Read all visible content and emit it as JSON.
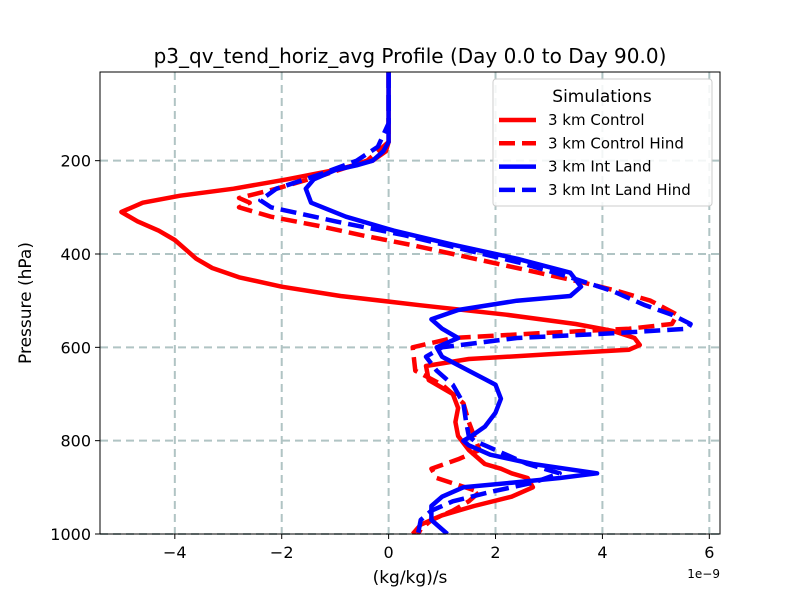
{
  "chart_data": {
    "type": "line",
    "title": "p3_qv_tend_horiz_avg Profile (Day 0.0 to Day 90.0)",
    "xlabel": "(kg/kg)/s",
    "ylabel": "Pressure (hPa)",
    "x_offset_label": "1e−9",
    "xlim": [
      -5.4,
      6.2
    ],
    "ylim": [
      1000,
      10
    ],
    "y_inverted": true,
    "grid": true,
    "x_ticks": [
      -4,
      -2,
      0,
      2,
      4,
      6
    ],
    "x_tick_labels": [
      "−4",
      "−2",
      "0",
      "2",
      "4",
      "6"
    ],
    "y_ticks": [
      200,
      400,
      600,
      800,
      1000
    ],
    "y_tick_labels": [
      "200",
      "400",
      "600",
      "800",
      "1000"
    ],
    "legend": {
      "title": "Simulations",
      "position": "upper right"
    },
    "series": [
      {
        "name": "3 km Control",
        "color": "#ff0000",
        "dash": "solid",
        "x": [
          0,
          0.0,
          0.0,
          -0.05,
          -0.3,
          -1.0,
          -1.9,
          -2.9,
          -3.9,
          -4.6,
          -5.0,
          -4.7,
          -4.3,
          -4.0,
          -3.8,
          -3.6,
          -3.3,
          -2.8,
          -2.0,
          -0.9,
          0.6,
          2.2,
          3.5,
          4.2,
          4.6,
          4.7,
          4.5,
          3.0,
          1.5,
          0.7,
          0.75,
          1.2,
          1.3,
          1.25,
          1.3,
          1.5,
          1.8,
          2.1,
          2.3,
          2.6,
          2.7,
          2.3,
          1.6,
          1.0,
          0.6,
          0.45
        ],
        "y": [
          10,
          120,
          160,
          180,
          200,
          220,
          240,
          260,
          275,
          290,
          310,
          330,
          350,
          370,
          390,
          410,
          430,
          450,
          470,
          490,
          510,
          530,
          550,
          565,
          580,
          595,
          605,
          615,
          625,
          640,
          670,
          700,
          730,
          760,
          790,
          820,
          850,
          860,
          870,
          880,
          900,
          920,
          940,
          960,
          980,
          1000
        ]
      },
      {
        "name": "3 km Control Hind",
        "color": "#ff0000",
        "dash": "dashed",
        "x": [
          0,
          0.0,
          0.0,
          -0.4,
          -1.2,
          -2.1,
          -2.8,
          -2.6,
          -2.8,
          -2.2,
          -1.3,
          -0.5,
          0.4,
          1.2,
          2.0,
          2.8,
          3.6,
          4.3,
          4.9,
          5.4,
          5.3,
          4.5,
          2.8,
          1.2,
          0.45,
          0.5,
          1.0,
          1.4,
          1.5,
          1.6,
          1.7,
          1.3,
          0.8,
          0.9,
          1.7,
          1.5,
          1.2,
          0.8,
          0.6,
          0.55
        ],
        "y": [
          10,
          120,
          160,
          200,
          230,
          260,
          280,
          290,
          300,
          320,
          340,
          360,
          380,
          400,
          420,
          440,
          460,
          480,
          500,
          530,
          550,
          560,
          570,
          580,
          600,
          650,
          680,
          720,
          760,
          790,
          820,
          840,
          860,
          880,
          910,
          930,
          950,
          970,
          990,
          1000
        ]
      },
      {
        "name": "3 km Int Land",
        "color": "#0000ff",
        "dash": "solid",
        "x": [
          0,
          0.0,
          0.0,
          -0.1,
          -0.3,
          -0.6,
          -1.0,
          -1.4,
          -1.55,
          -1.45,
          -0.8,
          0.1,
          1.2,
          2.4,
          3.4,
          3.6,
          3.4,
          2.4,
          1.3,
          0.8,
          1.0,
          1.3,
          0.9,
          1.0,
          1.5,
          2.0,
          2.1,
          2.0,
          1.8,
          1.55,
          1.4,
          1.5,
          1.9,
          2.7,
          3.9,
          3.2,
          2.3,
          1.4,
          1.0,
          0.8,
          0.8,
          1.1
        ],
        "y": [
          10,
          120,
          160,
          180,
          200,
          210,
          220,
          240,
          260,
          290,
          320,
          350,
          380,
          410,
          440,
          470,
          490,
          500,
          520,
          540,
          560,
          580,
          600,
          620,
          650,
          680,
          710,
          740,
          770,
          790,
          800,
          810,
          830,
          850,
          870,
          880,
          890,
          900,
          920,
          940,
          970,
          1000
        ]
      },
      {
        "name": "3 km Int Land Hind",
        "color": "#0000ff",
        "dash": "dashed",
        "x": [
          0,
          0.0,
          -0.2,
          -0.6,
          -1.3,
          -2.1,
          -2.4,
          -2.2,
          -1.0,
          0.3,
          1.4,
          2.5,
          3.4,
          4.2,
          4.8,
          5.3,
          5.65,
          5.6,
          4.2,
          2.4,
          1.0,
          0.7,
          0.9,
          1.2,
          1.4,
          1.45,
          1.5,
          1.6,
          1.8,
          2.2,
          2.6,
          3.2,
          2.7,
          1.9,
          1.2,
          0.8,
          0.6,
          0.55
        ],
        "y": [
          10,
          120,
          170,
          200,
          230,
          260,
          285,
          300,
          330,
          360,
          390,
          420,
          450,
          480,
          510,
          530,
          550,
          560,
          570,
          580,
          600,
          620,
          650,
          680,
          720,
          760,
          790,
          800,
          810,
          830,
          850,
          870,
          890,
          910,
          930,
          950,
          970,
          1000
        ]
      }
    ]
  }
}
